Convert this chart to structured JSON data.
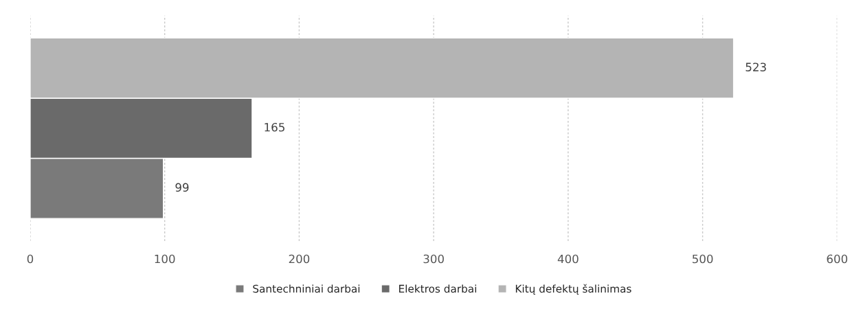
{
  "chart_data": {
    "type": "bar",
    "orientation": "horizontal",
    "categories": [
      null
    ],
    "series": [
      {
        "name": "Santechniniai darbai",
        "color": "#7a7a7a",
        "values": [
          99
        ]
      },
      {
        "name": "Elektros darbai",
        "color": "#6a6a6a",
        "values": [
          165
        ]
      },
      {
        "name": "Kitų defektų šalinimas",
        "color": "#b4b4b4",
        "values": [
          523
        ]
      }
    ],
    "xlim": [
      0,
      600
    ],
    "xticks": [
      0,
      100,
      200,
      300,
      400,
      500,
      600
    ],
    "grid": "x",
    "legend": "bottom",
    "data_labels": true
  }
}
